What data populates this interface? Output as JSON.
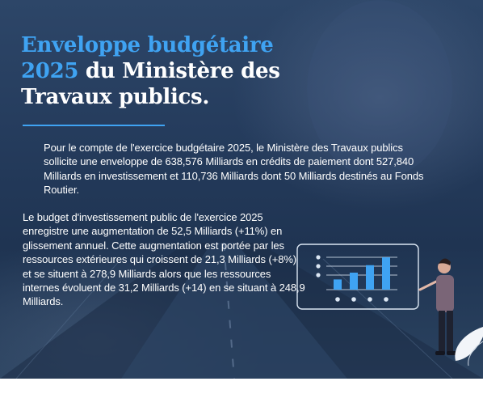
{
  "title": {
    "line1_accent": "Enveloppe budgétaire",
    "line2_accent": "2025",
    "line2_rest": " du Ministère des",
    "line3": "Travaux publics."
  },
  "paragraphs": {
    "p1": "Pour le compte de l'exercice budgétaire 2025, le Ministère des Travaux publics sollicite une enveloppe de 638,576 Milliards en crédits de paiement dont 527,840 Milliards en investissement et 110,736 Milliards dont 50 Milliards destinés au Fonds Routier.",
    "p2": "Le budget d'investissement public de l'exercice 2025 enregistre une augmentation de 52,5 Milliards (+11%) en glissement annuel. Cette augmentation est portée par les ressources extérieures qui croissent de 21,3 Milliards (+8%) et se situent à 278,9 Milliards alors que les ressources internes évoluent de 31,2 Milliards (+14) en se situant à 248,9 Milliards."
  },
  "colors": {
    "accent": "#3fa3f2",
    "background": "#253c5d",
    "text": "#ffffff"
  },
  "illustration": {
    "bar_levels": [
      0.3,
      0.5,
      0.72,
      0.95
    ],
    "icons": [
      "presentation-board-icon",
      "presenter-person-icon",
      "leaf-icon"
    ]
  }
}
